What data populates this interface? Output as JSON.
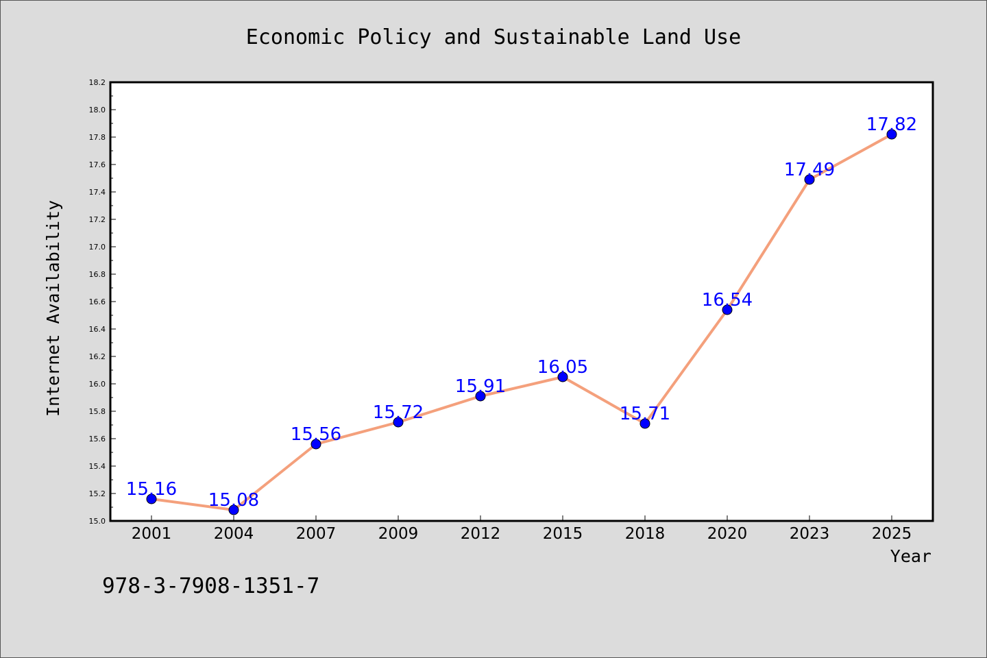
{
  "chart_data": {
    "type": "line",
    "title": "Economic Policy and Sustainable Land Use",
    "xlabel": "Year",
    "ylabel": "Internet Availability",
    "categories": [
      "2001",
      "2004",
      "2007",
      "2009",
      "2012",
      "2015",
      "2018",
      "2020",
      "2023",
      "2025"
    ],
    "series": [
      {
        "values": [
          15.16,
          15.08,
          15.56,
          15.72,
          15.91,
          16.05,
          15.71,
          16.54,
          17.49,
          17.82
        ]
      }
    ],
    "data_labels": [
      "15.16",
      "15.08",
      "15.56",
      "15.72",
      "15.91",
      "16.05",
      "15.71",
      "16.54",
      "17.49",
      "17.82"
    ],
    "ylim": [
      15.0,
      18.2
    ],
    "yticks": [
      "15.0",
      "15.2",
      "15.4",
      "15.6",
      "15.8",
      "16.0",
      "16.2",
      "16.4",
      "16.6",
      "16.8",
      "17.0",
      "17.2",
      "17.4",
      "17.6",
      "17.8",
      "18.0",
      "18.2"
    ],
    "grid": false,
    "colors": {
      "line": "#f4a07c",
      "marker": "#0000ff",
      "label": "#0000ff",
      "background": "#dcdcdc",
      "plot_background": "#ffffff"
    }
  },
  "footer_text": "978-3-7908-1351-7"
}
